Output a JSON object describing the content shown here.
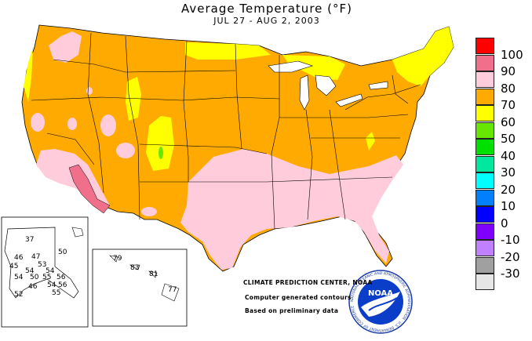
{
  "header": {
    "title": "Average Temperature (°F)",
    "subtitle": "JUL 27 - AUG  2, 2003"
  },
  "legend": [
    {
      "label": "100",
      "color": "#ff0000"
    },
    {
      "label": "90",
      "color": "#f0708c"
    },
    {
      "label": "80",
      "color": "#ffccdc"
    },
    {
      "label": "70",
      "color": "#ffaa00"
    },
    {
      "label": "60",
      "color": "#ffff00"
    },
    {
      "label": "50",
      "color": "#66e600"
    },
    {
      "label": "40",
      "color": "#00e000"
    },
    {
      "label": "30",
      "color": "#00e8a0"
    },
    {
      "label": "20",
      "color": "#00ffff"
    },
    {
      "label": "10",
      "color": "#0080ff"
    },
    {
      "label": "0",
      "color": "#0000ff"
    },
    {
      "label": "-10",
      "color": "#8000ff"
    },
    {
      "label": "-20",
      "color": "#c080ff"
    },
    {
      "label": "-30",
      "color": "#a0a0a0"
    },
    {
      "label": "",
      "color": "#e6e6e6"
    }
  ],
  "alaska_stations": [
    "37",
    "50",
    "46",
    "47",
    "53",
    "45",
    "54",
    "54",
    "54",
    "50",
    "55",
    "56",
    "46",
    "54",
    "56",
    "52",
    "55"
  ],
  "hawaii_stations": [
    "79",
    "83",
    "81",
    "77"
  ],
  "credits": {
    "center": "CLIMATE PREDICTION CENTER, NOAA",
    "line1": "Computer generated contours",
    "line2": "Based on preliminary data"
  },
  "logo": {
    "text": "NOAA",
    "ring_text": "NATIONAL OCEANIC AND ATMOSPHERIC ADMINISTRATION · U.S. DEPARTMENT OF COMMERCE"
  }
}
